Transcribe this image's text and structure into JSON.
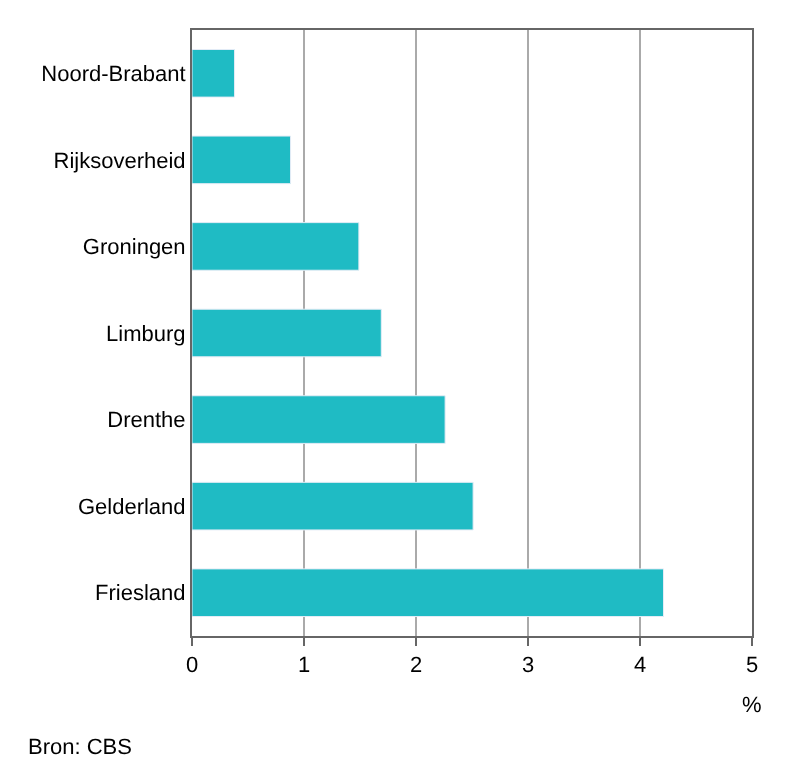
{
  "chart_data": {
    "type": "bar",
    "orientation": "horizontal",
    "xlabel": "%",
    "categories": [
      "Noord-Brabant",
      "Rijksoverheid",
      "Groningen",
      "Limburg",
      "Drenthe",
      "Gelderland",
      "Friesland"
    ],
    "values": [
      0.38,
      0.88,
      1.49,
      1.69,
      2.26,
      2.51,
      4.21
    ],
    "color": "#1fbbc4",
    "xlim": [
      0,
      5
    ],
    "xticks": [
      0,
      1,
      2,
      3,
      4,
      5
    ],
    "grid": "x",
    "annotations": [
      "Bron: CBS"
    ]
  }
}
